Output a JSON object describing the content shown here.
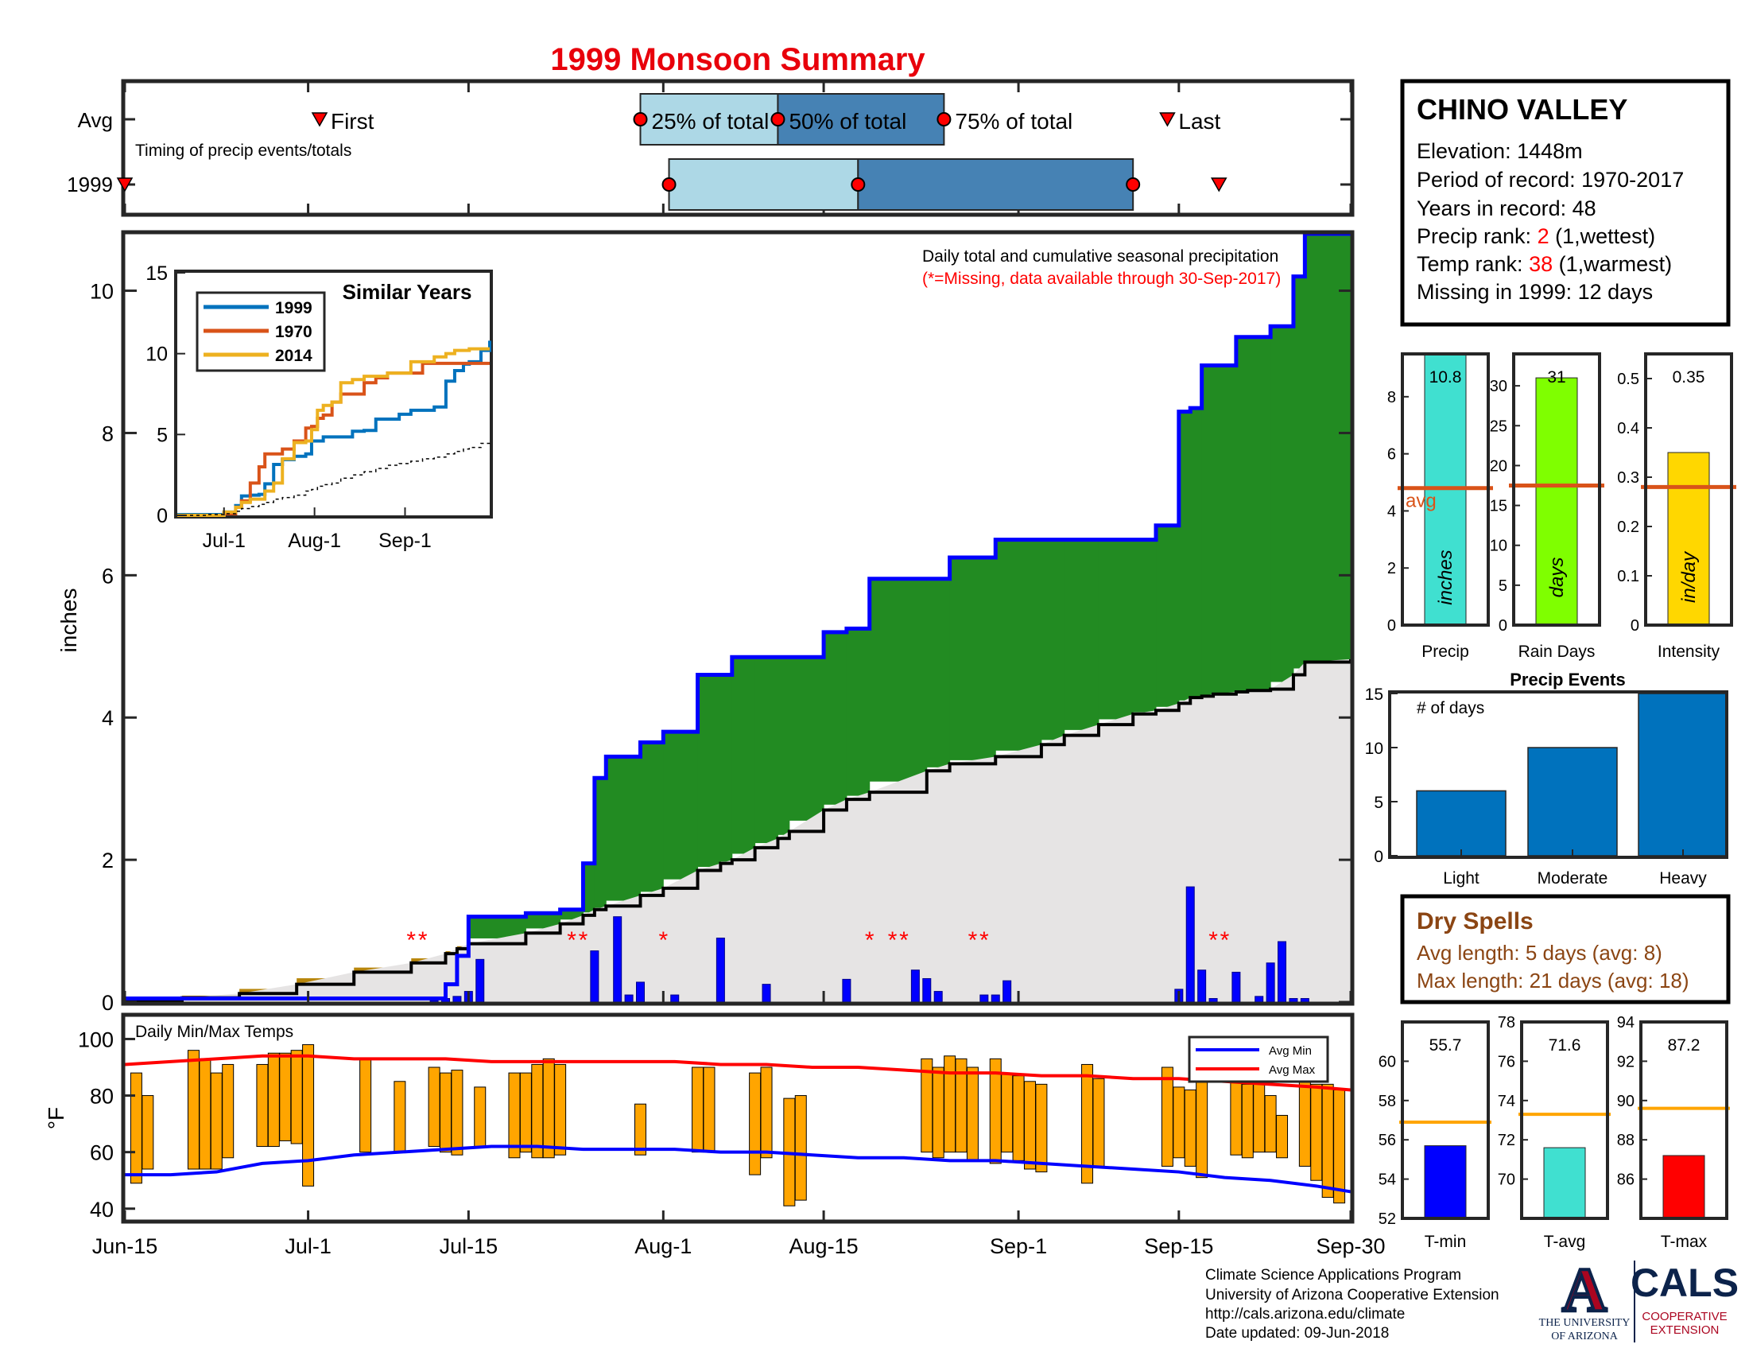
{
  "title": "1999 Monsoon Summary",
  "timing": {
    "row_labels": [
      "Avg",
      "1999"
    ],
    "caption": "Timing of precip events/totals",
    "labels": {
      "first": "First",
      "q25": "25% of total",
      "q50": "50% of total",
      "q75": "75% of total",
      "last": "Last"
    },
    "avg": {
      "first": 17,
      "q25": 45,
      "q50": 57,
      "q75": 71.5,
      "last": 91
    },
    "year": {
      "first": 0,
      "q25": 47.5,
      "q50": 64,
      "q75": 88,
      "last": 95.5
    },
    "colors": {
      "q1": "#add8e6",
      "q2": "#4682b4",
      "marker": "#ff0000"
    }
  },
  "station": {
    "name": "CHINO VALLEY",
    "elevation": "Elevation: 1448m",
    "period": "Period of record: 1970-2017",
    "years": "Years in record: 48",
    "precip_rank_label": "Precip rank: ",
    "precip_rank": "2",
    "precip_rank_note": " (1,wettest)",
    "temp_rank_label": "Temp rank: ",
    "temp_rank": "38",
    "temp_rank_note": " (1,warmest)",
    "missing": "Missing in 1999: 12 days"
  },
  "main_chart": {
    "note": "Daily total and cumulative seasonal precipitation",
    "note_missing": "(*=Missing, data available through 30-Sep-2017)",
    "ylabel": "inches",
    "ylim": [
      0,
      10.8
    ],
    "yticks": [
      0,
      2,
      4,
      6,
      8,
      10
    ],
    "xticks": [
      {
        "label": "Jun-15",
        "day": 0
      },
      {
        "label": "Jul-1",
        "day": 16
      },
      {
        "label": "Jul-15",
        "day": 30
      },
      {
        "label": "Aug-1",
        "day": 47
      },
      {
        "label": "Aug-15",
        "day": 61
      },
      {
        "label": "Sep-1",
        "day": 78
      },
      {
        "label": "Sep-15",
        "day": 92
      },
      {
        "label": "Sep-30",
        "day": 107
      }
    ],
    "missing_marker": "*",
    "missing_days": [
      25,
      26,
      39,
      40,
      47,
      65,
      67,
      68,
      74,
      75,
      95,
      96
    ],
    "colors": {
      "above": "#228b22",
      "below_fill": "#b8860b",
      "avg_fill": "#e6e4e4",
      "cum_line": "#0000ff",
      "avg_line": "#000000",
      "daily_bar": "#0000ff",
      "missing": "#ff0000"
    }
  },
  "chart_data": [
    {
      "type": "area",
      "title": "Daily total and cumulative seasonal precipitation",
      "xlabel": "",
      "ylabel": "inches",
      "ylim": [
        0,
        10.8
      ],
      "x": [
        0,
        5,
        10,
        15,
        20,
        25,
        28,
        29,
        30,
        35,
        38,
        40,
        41,
        42,
        45,
        47,
        50,
        52,
        53,
        55,
        57,
        58,
        61,
        63,
        65,
        70,
        72,
        76,
        80,
        82,
        85,
        88,
        90,
        92,
        93,
        94,
        95,
        97,
        98,
        100,
        102,
        103,
        107
      ],
      "series": [
        {
          "name": "1999",
          "values": [
            0.05,
            0.05,
            0.05,
            0.05,
            0.05,
            0.05,
            0.25,
            0.65,
            1.2,
            1.25,
            1.3,
            1.95,
            3.15,
            3.45,
            3.65,
            3.8,
            4.6,
            4.6,
            4.85,
            4.85,
            4.85,
            4.85,
            5.2,
            5.25,
            5.95,
            5.95,
            6.25,
            6.5,
            6.5,
            6.5,
            6.5,
            6.5,
            6.7,
            8.3,
            8.35,
            8.95,
            8.95,
            9.35,
            9.35,
            9.5,
            10.2,
            10.8,
            10.8
          ]
        },
        {
          "name": "Avg",
          "values": [
            0.02,
            0.06,
            0.12,
            0.25,
            0.42,
            0.55,
            0.68,
            0.75,
            0.82,
            0.97,
            1.1,
            1.22,
            1.3,
            1.35,
            1.5,
            1.6,
            1.85,
            1.95,
            2.0,
            2.17,
            2.3,
            2.4,
            2.7,
            2.85,
            2.95,
            3.25,
            3.35,
            3.45,
            3.62,
            3.75,
            3.9,
            4.05,
            4.1,
            4.2,
            4.28,
            4.3,
            4.33,
            4.36,
            4.38,
            4.4,
            4.6,
            4.78,
            4.82
          ]
        }
      ],
      "daily": {
        "x": [
          27,
          28,
          29,
          30,
          31,
          41,
          43,
          44,
          45,
          48,
          52,
          56,
          63,
          69,
          70,
          71,
          75,
          76,
          77,
          92,
          93,
          94,
          95,
          97,
          99,
          100,
          101,
          102,
          103
        ],
        "values": [
          0.02,
          0.05,
          0.08,
          0.15,
          0.6,
          0.72,
          1.2,
          0.1,
          0.28,
          0.1,
          0.9,
          0.25,
          0.32,
          0.45,
          0.33,
          0.15,
          0.1,
          0.1,
          0.3,
          0.18,
          1.62,
          0.45,
          0.05,
          0.42,
          0.08,
          0.55,
          0.85,
          0.05,
          0.05
        ]
      }
    },
    {
      "type": "line",
      "title": "Similar Years",
      "xticks": [
        "Jul-1",
        "Aug-1",
        "Sep-1"
      ],
      "yticks": [
        0,
        5,
        10,
        15
      ],
      "ylim": [
        0,
        15
      ],
      "x": [
        0,
        10,
        16,
        20,
        22,
        25,
        28,
        30,
        33,
        36,
        40,
        44,
        46,
        48,
        50,
        53,
        56,
        60,
        64,
        68,
        72,
        76,
        80,
        84,
        88,
        92,
        95,
        98,
        100,
        104,
        107
      ],
      "series": [
        {
          "name": "1999",
          "color": "#0072bd",
          "values": [
            0.05,
            0.05,
            0.2,
            0.6,
            1.2,
            1.25,
            1.3,
            1.95,
            3.15,
            3.45,
            3.65,
            3.8,
            4.6,
            4.6,
            4.85,
            4.85,
            4.85,
            5.2,
            5.25,
            5.95,
            5.95,
            6.25,
            6.5,
            6.5,
            6.7,
            8.3,
            8.95,
            9.35,
            9.5,
            10.2,
            10.8
          ]
        },
        {
          "name": "1970",
          "color": "#d95319",
          "values": [
            0,
            0,
            0.1,
            0.5,
            0.9,
            2.0,
            3.0,
            3.8,
            3.8,
            4.1,
            4.6,
            5.4,
            5.5,
            6.0,
            6.2,
            7.0,
            7.5,
            7.5,
            8.2,
            8.5,
            8.8,
            8.8,
            8.8,
            9.4,
            9.4,
            9.4,
            9.4,
            9.4,
            9.4,
            9.4,
            9.4
          ]
        },
        {
          "name": "2014",
          "color": "#edb120",
          "values": [
            0,
            0,
            0.2,
            0.5,
            0.8,
            1.0,
            1.0,
            1.5,
            2.0,
            3.5,
            4.5,
            4.6,
            5.3,
            6.5,
            6.8,
            7.0,
            8.2,
            8.4,
            8.6,
            8.6,
            8.8,
            8.8,
            9.5,
            9.5,
            9.8,
            10.0,
            10.2,
            10.2,
            10.3,
            10.3,
            10.3
          ]
        },
        {
          "name": "avg",
          "color": "#000000",
          "values": [
            0,
            0.05,
            0.1,
            0.25,
            0.42,
            0.55,
            0.68,
            0.8,
            1.0,
            1.1,
            1.25,
            1.5,
            1.6,
            1.8,
            1.9,
            2.0,
            2.3,
            2.5,
            2.7,
            2.9,
            3.1,
            3.2,
            3.35,
            3.5,
            3.6,
            3.8,
            3.95,
            4.1,
            4.2,
            4.45,
            4.6
          ]
        }
      ]
    },
    {
      "type": "bar",
      "title": "Daily Min/Max Temps",
      "ylabel": "°F",
      "ylim": [
        36,
        108
      ],
      "yticks": [
        40,
        60,
        80,
        100
      ],
      "bars": [
        {
          "x": 1,
          "lo": 49,
          "hi": 88
        },
        {
          "x": 2,
          "lo": 54,
          "hi": 80
        },
        {
          "x": 6,
          "lo": 54,
          "hi": 96
        },
        {
          "x": 7,
          "lo": 54,
          "hi": 93
        },
        {
          "x": 8,
          "lo": 54,
          "hi": 88
        },
        {
          "x": 9,
          "lo": 58,
          "hi": 91
        },
        {
          "x": 12,
          "lo": 62,
          "hi": 91
        },
        {
          "x": 13,
          "lo": 62,
          "hi": 95
        },
        {
          "x": 14,
          "lo": 64,
          "hi": 95
        },
        {
          "x": 15,
          "lo": 63,
          "hi": 96
        },
        {
          "x": 16,
          "lo": 48,
          "hi": 98
        },
        {
          "x": 21,
          "lo": 60,
          "hi": 93
        },
        {
          "x": 24,
          "lo": 60,
          "hi": 85
        },
        {
          "x": 27,
          "lo": 62,
          "hi": 90
        },
        {
          "x": 28,
          "lo": 60,
          "hi": 88
        },
        {
          "x": 29,
          "lo": 59,
          "hi": 89
        },
        {
          "x": 31,
          "lo": 62,
          "hi": 83
        },
        {
          "x": 34,
          "lo": 58,
          "hi": 88
        },
        {
          "x": 35,
          "lo": 60,
          "hi": 88
        },
        {
          "x": 36,
          "lo": 58,
          "hi": 91
        },
        {
          "x": 37,
          "lo": 58,
          "hi": 93
        },
        {
          "x": 38,
          "lo": 59,
          "hi": 91
        },
        {
          "x": 45,
          "lo": 59,
          "hi": 77
        },
        {
          "x": 50,
          "lo": 60,
          "hi": 90
        },
        {
          "x": 51,
          "lo": 60,
          "hi": 90
        },
        {
          "x": 55,
          "lo": 52,
          "hi": 88
        },
        {
          "x": 56,
          "lo": 58,
          "hi": 90
        },
        {
          "x": 58,
          "lo": 41,
          "hi": 79
        },
        {
          "x": 59,
          "lo": 43,
          "hi": 80
        },
        {
          "x": 70,
          "lo": 60,
          "hi": 93
        },
        {
          "x": 71,
          "lo": 58,
          "hi": 90
        },
        {
          "x": 72,
          "lo": 60,
          "hi": 94
        },
        {
          "x": 73,
          "lo": 60,
          "hi": 93
        },
        {
          "x": 74,
          "lo": 57,
          "hi": 90
        },
        {
          "x": 76,
          "lo": 56,
          "hi": 93
        },
        {
          "x": 77,
          "lo": 60,
          "hi": 88
        },
        {
          "x": 78,
          "lo": 57,
          "hi": 87
        },
        {
          "x": 79,
          "lo": 54,
          "hi": 85
        },
        {
          "x": 80,
          "lo": 53,
          "hi": 84
        },
        {
          "x": 84,
          "lo": 49,
          "hi": 91
        },
        {
          "x": 85,
          "lo": 55,
          "hi": 86
        },
        {
          "x": 91,
          "lo": 55,
          "hi": 90
        },
        {
          "x": 92,
          "lo": 58,
          "hi": 83
        },
        {
          "x": 93,
          "lo": 55,
          "hi": 82
        },
        {
          "x": 94,
          "lo": 51,
          "hi": 88
        },
        {
          "x": 97,
          "lo": 59,
          "hi": 86
        },
        {
          "x": 98,
          "lo": 58,
          "hi": 84
        },
        {
          "x": 99,
          "lo": 60,
          "hi": 84
        },
        {
          "x": 100,
          "lo": 60,
          "hi": 80
        },
        {
          "x": 101,
          "lo": 58,
          "hi": 73
        },
        {
          "x": 103,
          "lo": 55,
          "hi": 86
        },
        {
          "x": 104,
          "lo": 50,
          "hi": 84
        },
        {
          "x": 105,
          "lo": 44,
          "hi": 84
        },
        {
          "x": 106,
          "lo": 42,
          "hi": 82
        }
      ],
      "avg_min": {
        "x": [
          0,
          4,
          8,
          12,
          16,
          20,
          24,
          28,
          32,
          36,
          40,
          44,
          48,
          52,
          56,
          60,
          64,
          68,
          72,
          76,
          80,
          84,
          88,
          92,
          96,
          100,
          104,
          107
        ],
        "values": [
          52,
          52,
          53,
          56,
          57,
          59,
          60,
          61,
          62,
          62,
          61,
          61,
          61,
          60,
          60,
          59,
          58,
          58,
          57,
          57,
          56,
          55,
          54,
          53,
          51,
          50,
          48,
          46
        ]
      },
      "avg_max": {
        "x": [
          0,
          4,
          8,
          12,
          16,
          20,
          24,
          28,
          32,
          36,
          40,
          44,
          48,
          52,
          56,
          60,
          64,
          68,
          72,
          76,
          80,
          84,
          88,
          92,
          96,
          100,
          104,
          107
        ],
        "values": [
          91,
          92,
          93,
          94,
          94,
          93,
          93,
          93,
          92,
          92,
          92,
          92,
          92,
          91,
          91,
          90,
          90,
          89,
          88,
          88,
          87,
          87,
          86,
          86,
          85,
          84,
          83,
          82
        ]
      },
      "legend": [
        "Avg Min",
        "Avg Max"
      ]
    },
    {
      "type": "bar",
      "title": "Precip Events",
      "categories": [
        "Light",
        "Moderate",
        "Heavy"
      ],
      "values": [
        6,
        10,
        15
      ],
      "ylim": [
        0,
        15
      ],
      "yticks": [
        0,
        5,
        10,
        15
      ],
      "annotation": "# of days"
    }
  ],
  "temps_panel": {
    "title": "Daily Min/Max Temps",
    "ylabel": "°F",
    "legend": {
      "min": "Avg Min",
      "max": "Avg Max"
    },
    "colors": {
      "bar": "#ffa500",
      "avg_min": "#0000ff",
      "avg_max": "#ff0000"
    }
  },
  "similar_years": {
    "title": "Similar Years",
    "legend": [
      "1999",
      "1970",
      "2014"
    ]
  },
  "mini_bars": [
    {
      "label": "Precip",
      "unit": "inches",
      "value": 10.8,
      "value_text": "10.8",
      "avg": 4.8,
      "avg_label": "avg",
      "ylim": [
        0,
        9.5
      ],
      "yticks": [
        0,
        2,
        4,
        6,
        8
      ],
      "color": "#40e0d0"
    },
    {
      "label": "Rain Days",
      "unit": "days",
      "value": 31,
      "value_text": "31",
      "avg": 17.5,
      "ylim": [
        0,
        34
      ],
      "yticks": [
        0,
        5,
        10,
        15,
        20,
        25,
        30
      ],
      "color": "#7fff00"
    },
    {
      "label": "Intensity",
      "unit": "in/day",
      "value": 0.35,
      "value_text": "0.35",
      "avg": 0.28,
      "ylim": [
        0,
        0.55
      ],
      "yticks": [
        0,
        0.1,
        0.2,
        0.3,
        0.4,
        0.5
      ],
      "color": "#ffd700"
    }
  ],
  "mini_bar_avg_color": "#d95319",
  "precip_events": {
    "title": "Precip Events",
    "annotation": "# of days",
    "categories": [
      "Light",
      "Moderate",
      "Heavy"
    ],
    "values": [
      6,
      10,
      15
    ],
    "color": "#0072bd"
  },
  "dry_spells": {
    "title": "Dry Spells",
    "avg_length": "Avg length: 5 days (avg: 8)",
    "max_length": "Max length: 21 days (avg: 18)",
    "color": "#8b4513"
  },
  "temp_bars": [
    {
      "label": "T-min",
      "value": 55.7,
      "value_text": "55.7",
      "avg": 56.9,
      "ylim": [
        52,
        62
      ],
      "yticks": [
        52,
        54,
        56,
        58,
        60
      ],
      "color": "#0000ff"
    },
    {
      "label": "T-avg",
      "value": 71.6,
      "value_text": "71.6",
      "avg": 73.3,
      "ylim": [
        68,
        78
      ],
      "yticks": [
        70,
        72,
        74,
        76,
        78
      ],
      "color": "#40e0d0"
    },
    {
      "label": "T-max",
      "value": 87.2,
      "value_text": "87.2",
      "avg": 89.6,
      "ylim": [
        84,
        94
      ],
      "yticks": [
        86,
        88,
        90,
        92,
        94
      ],
      "color": "#ff0000"
    }
  ],
  "temp_bar_avg_color": "#ffa500",
  "footer": {
    "line1": "Climate Science Applications Program",
    "line2": "University of Arizona Cooperative Extension",
    "line3": "http://cals.arizona.edu/climate",
    "line4": " Date updated: 09-Jun-2018"
  },
  "logos": {
    "ua_letter": "A",
    "ua_line1": "THE UNIVERSITY",
    "ua_line2": "OF ARIZONA",
    "cals": "CALS",
    "cals_line1": "COOPERATIVE",
    "cals_line2": "EXTENSION",
    "navy": "#0c234b",
    "red": "#ab0520"
  }
}
